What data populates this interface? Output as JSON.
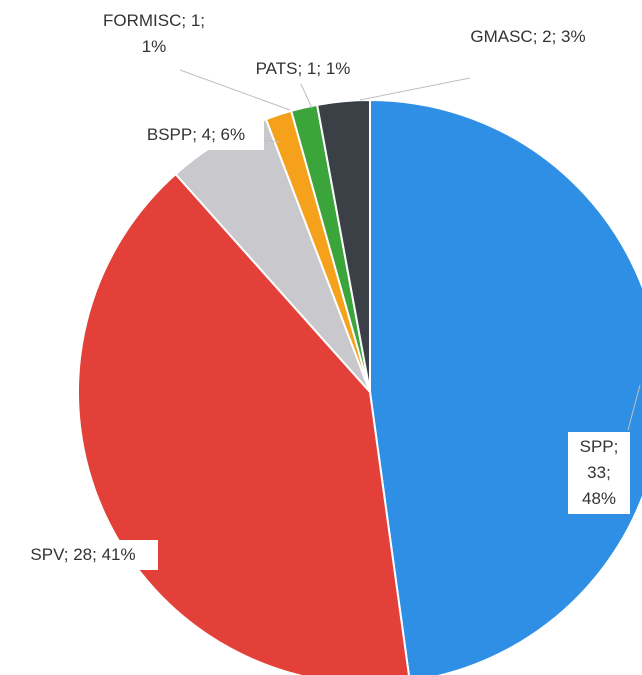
{
  "chart_data": {
    "type": "pie",
    "categories": [
      "SPP",
      "SPV",
      "BSPP",
      "FORMISC",
      "PATS",
      "GMASC"
    ],
    "values": [
      33,
      28,
      4,
      1,
      1,
      2
    ],
    "value_labels": [
      "SPP; 33; 48%",
      "SPV; 28; 41%",
      "BSPP; 4; 6%",
      "FORMISC; 1; 1%",
      "PATS; 1; 1%",
      "GMASC; 2; 3%"
    ],
    "colors": [
      "#2f8fe4",
      "#e4403a",
      "#c9c9cd",
      "#f5a11c",
      "#3ba43b",
      "#3b4047"
    ]
  }
}
